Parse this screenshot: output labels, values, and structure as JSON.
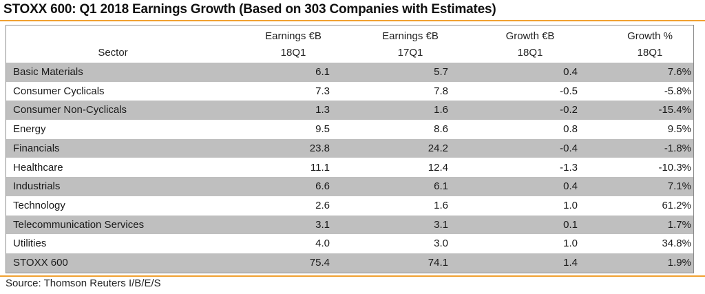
{
  "title": "STOXX 600: Q1 2018 Earnings Growth (Based on 303 Companies with Estimates)",
  "source": "Source: Thomson Reuters I/B/E/S",
  "colors": {
    "accent_rule": "#f0a030",
    "row_shade": "#bfbfbf",
    "border": "#8a8a8a"
  },
  "table": {
    "headers": [
      {
        "line1": "",
        "line2": "Sector"
      },
      {
        "line1": "Earnings €B",
        "line2": "18Q1"
      },
      {
        "line1": "Earnings €B",
        "line2": "17Q1"
      },
      {
        "line1": "Growth €B",
        "line2": "18Q1"
      },
      {
        "line1": "Growth %",
        "line2": "18Q1"
      }
    ],
    "rows": [
      {
        "sector": "Basic Materials",
        "earnings_18q1": "6.1",
        "earnings_17q1": "5.7",
        "growth_eur_b": "0.4",
        "growth_pct": "7.6%"
      },
      {
        "sector": "Consumer Cyclicals",
        "earnings_18q1": "7.3",
        "earnings_17q1": "7.8",
        "growth_eur_b": "-0.5",
        "growth_pct": "-5.8%"
      },
      {
        "sector": "Consumer Non-Cyclicals",
        "earnings_18q1": "1.3",
        "earnings_17q1": "1.6",
        "growth_eur_b": "-0.2",
        "growth_pct": "-15.4%"
      },
      {
        "sector": "Energy",
        "earnings_18q1": "9.5",
        "earnings_17q1": "8.6",
        "growth_eur_b": "0.8",
        "growth_pct": "9.5%"
      },
      {
        "sector": "Financials",
        "earnings_18q1": "23.8",
        "earnings_17q1": "24.2",
        "growth_eur_b": "-0.4",
        "growth_pct": "-1.8%"
      },
      {
        "sector": "Healthcare",
        "earnings_18q1": "11.1",
        "earnings_17q1": "12.4",
        "growth_eur_b": "-1.3",
        "growth_pct": "-10.3%"
      },
      {
        "sector": "Industrials",
        "earnings_18q1": "6.6",
        "earnings_17q1": "6.1",
        "growth_eur_b": "0.4",
        "growth_pct": "7.1%"
      },
      {
        "sector": "Technology",
        "earnings_18q1": "2.6",
        "earnings_17q1": "1.6",
        "growth_eur_b": "1.0",
        "growth_pct": "61.2%"
      },
      {
        "sector": "Telecommunication Services",
        "earnings_18q1": "3.1",
        "earnings_17q1": "3.1",
        "growth_eur_b": "0.1",
        "growth_pct": "1.7%"
      },
      {
        "sector": "Utilities",
        "earnings_18q1": "4.0",
        "earnings_17q1": "3.0",
        "growth_eur_b": "1.0",
        "growth_pct": "34.8%"
      },
      {
        "sector": "STOXX 600",
        "earnings_18q1": "75.4",
        "earnings_17q1": "74.1",
        "growth_eur_b": "1.4",
        "growth_pct": "1.9%"
      }
    ]
  },
  "chart_data": {
    "type": "table",
    "title": "STOXX 600: Q1 2018 Earnings Growth (Based on 303 Companies with Estimates)",
    "columns": [
      "Sector",
      "Earnings €B 18Q1",
      "Earnings €B 17Q1",
      "Growth €B 18Q1",
      "Growth % 18Q1"
    ],
    "rows": [
      [
        "Basic Materials",
        6.1,
        5.7,
        0.4,
        7.6
      ],
      [
        "Consumer Cyclicals",
        7.3,
        7.8,
        -0.5,
        -5.8
      ],
      [
        "Consumer Non-Cyclicals",
        1.3,
        1.6,
        -0.2,
        -15.4
      ],
      [
        "Energy",
        9.5,
        8.6,
        0.8,
        9.5
      ],
      [
        "Financials",
        23.8,
        24.2,
        -0.4,
        -1.8
      ],
      [
        "Healthcare",
        11.1,
        12.4,
        -1.3,
        -10.3
      ],
      [
        "Industrials",
        6.6,
        6.1,
        0.4,
        7.1
      ],
      [
        "Technology",
        2.6,
        1.6,
        1.0,
        61.2
      ],
      [
        "Telecommunication Services",
        3.1,
        3.1,
        0.1,
        1.7
      ],
      [
        "Utilities",
        4.0,
        3.0,
        1.0,
        34.8
      ],
      [
        "STOXX 600",
        75.4,
        74.1,
        1.4,
        1.9
      ]
    ]
  }
}
